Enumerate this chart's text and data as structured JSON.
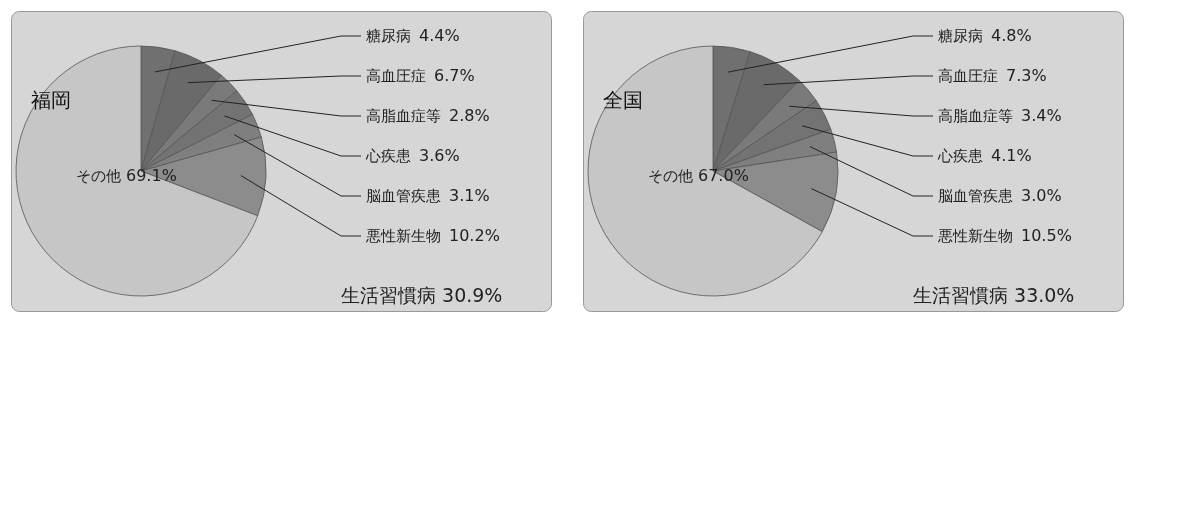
{
  "chart_data": [
    {
      "type": "pie",
      "title": "福岡",
      "categories": [
        "糖尿病",
        "高血圧症",
        "高脂血症等",
        "心疾患",
        "脳血管疾患",
        "悪性新生物",
        "その他"
      ],
      "values": [
        4.4,
        6.7,
        2.8,
        3.6,
        3.1,
        10.2,
        69.1
      ],
      "value_labels": [
        "4.4%",
        "6.7%",
        "2.8%",
        "3.6%",
        "3.1%",
        "10.2%",
        "69.1%"
      ],
      "colors": [
        "#707070",
        "#6a6a6a",
        "#7a7a7a",
        "#737373",
        "#7f7f7f",
        "#8c8c8c",
        "#c6c6c6"
      ],
      "annotations": [
        "生活習慣病 30.9%"
      ],
      "legend": false
    },
    {
      "type": "pie",
      "title": "全国",
      "categories": [
        "糖尿病",
        "高血圧症",
        "高脂血症等",
        "心疾患",
        "脳血管疾患",
        "悪性新生物",
        "その他"
      ],
      "values": [
        4.8,
        7.3,
        3.4,
        4.1,
        3.0,
        10.5,
        67.0
      ],
      "value_labels": [
        "4.8%",
        "7.3%",
        "3.4%",
        "4.1%",
        "3.0%",
        "10.5%",
        "67.0%"
      ],
      "colors": [
        "#707070",
        "#6a6a6a",
        "#7a7a7a",
        "#737373",
        "#7f7f7f",
        "#8c8c8c",
        "#c6c6c6"
      ],
      "annotations": [
        "生活習慣病 33.0%"
      ],
      "legend": false
    }
  ]
}
